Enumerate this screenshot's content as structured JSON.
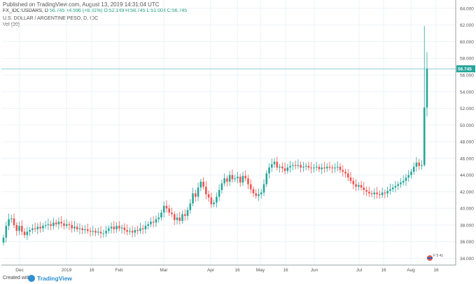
{
  "header": {
    "published": "Published on TradingView.com, August 13, 2019 14:31:04 UTC",
    "symbol": "FX_IDC:USDARS, D",
    "open": "56.745",
    "change": "+4.596 (+8.81%)",
    "o": "O:52.149",
    "h": "H:58.745",
    "l": "L:51.004",
    "c": "C:56.745",
    "title": "U.S. DOLLAR / ARGENTINE PESO, D, IDC",
    "volume": "Vol (20)"
  },
  "footer": {
    "created": "Created with",
    "brand": "TradingView"
  },
  "colors": {
    "up": "#26a69a",
    "down": "#ef5350",
    "grid": "#eef2f7",
    "price_line": "#61b8c4",
    "price_tag": "#26a69a"
  },
  "icons": [
    "flag-icon",
    "tradingview-logo-icon"
  ],
  "flag_label": "F 5 41",
  "chart_data": {
    "type": "candlestick",
    "title": "U.S. DOLLAR / ARGENTINE PESO, D, IDC",
    "ylim": [
      33.2,
      65.0
    ],
    "y_ticks": [
      "64.000",
      "62.000",
      "60.000",
      "58.000",
      "56.000",
      "54.000",
      "52.000",
      "50.000",
      "48.000",
      "46.000",
      "44.000",
      "42.000",
      "40.000",
      "38.000",
      "36.000",
      "34.000"
    ],
    "x_ticks": [
      "Dec",
      "2019",
      "16",
      "Feb",
      "Mar",
      "Apr",
      "16",
      "May",
      "16",
      "Jun",
      "Jul",
      "16",
      "Aug",
      "16"
    ],
    "last_price": "56.745",
    "grid": true,
    "closes": [
      36.5,
      37.9,
      38.7,
      38.8,
      38.0,
      37.3,
      37.9,
      37.2,
      36.8,
      37.2,
      37.4,
      37.6,
      37.5,
      37.8,
      37.6,
      37.9,
      38.0,
      38.1,
      37.9,
      38.3,
      38.1,
      38.4,
      38.2,
      37.9,
      38.1,
      38.0,
      37.6,
      37.8,
      37.5,
      37.6,
      37.4,
      37.5,
      37.3,
      37.2,
      37.3,
      37.1,
      37.2,
      37.0,
      37.0,
      37.3,
      37.6,
      37.8,
      37.5,
      37.9,
      37.6,
      37.7,
      37.4,
      37.2,
      37.3,
      37.1,
      37.4,
      37.3,
      37.6,
      37.5,
      37.9,
      38.1,
      38.4,
      38.3,
      38.7,
      38.9,
      39.5,
      40.3,
      40.0,
      39.5,
      39.3,
      38.6,
      38.9,
      38.5,
      39.3,
      39.1,
      39.8,
      40.6,
      41.8,
      41.4,
      42.5,
      43.2,
      42.6,
      41.7,
      41.3,
      40.5,
      40.7,
      41.4,
      42.2,
      43.0,
      43.6,
      43.2,
      44.0,
      43.5,
      43.6,
      43.8,
      43.1,
      43.9,
      43.6,
      42.9,
      42.3,
      41.8,
      41.5,
      41.7,
      41.9,
      42.9,
      44.2,
      44.9,
      45.3,
      45.6,
      44.9,
      45.0,
      44.8,
      44.5,
      44.9,
      45.1,
      45.2,
      45.1,
      45.2,
      44.9,
      45.0,
      45.1,
      44.9,
      44.8,
      44.9,
      45.0,
      44.7,
      44.9,
      44.8,
      45.0,
      44.9,
      44.8,
      44.9,
      45.0,
      44.6,
      44.4,
      44.2,
      43.7,
      43.3,
      42.9,
      42.6,
      42.8,
      42.5,
      42.2,
      42.0,
      41.8,
      41.7,
      41.9,
      41.7,
      41.6,
      41.9,
      41.8,
      42.1,
      42.3,
      42.5,
      42.7,
      42.9,
      43.1,
      43.3,
      43.7,
      44.0,
      44.4,
      45.0,
      45.5,
      45.1,
      45.2,
      52.1,
      56.745
    ]
  }
}
